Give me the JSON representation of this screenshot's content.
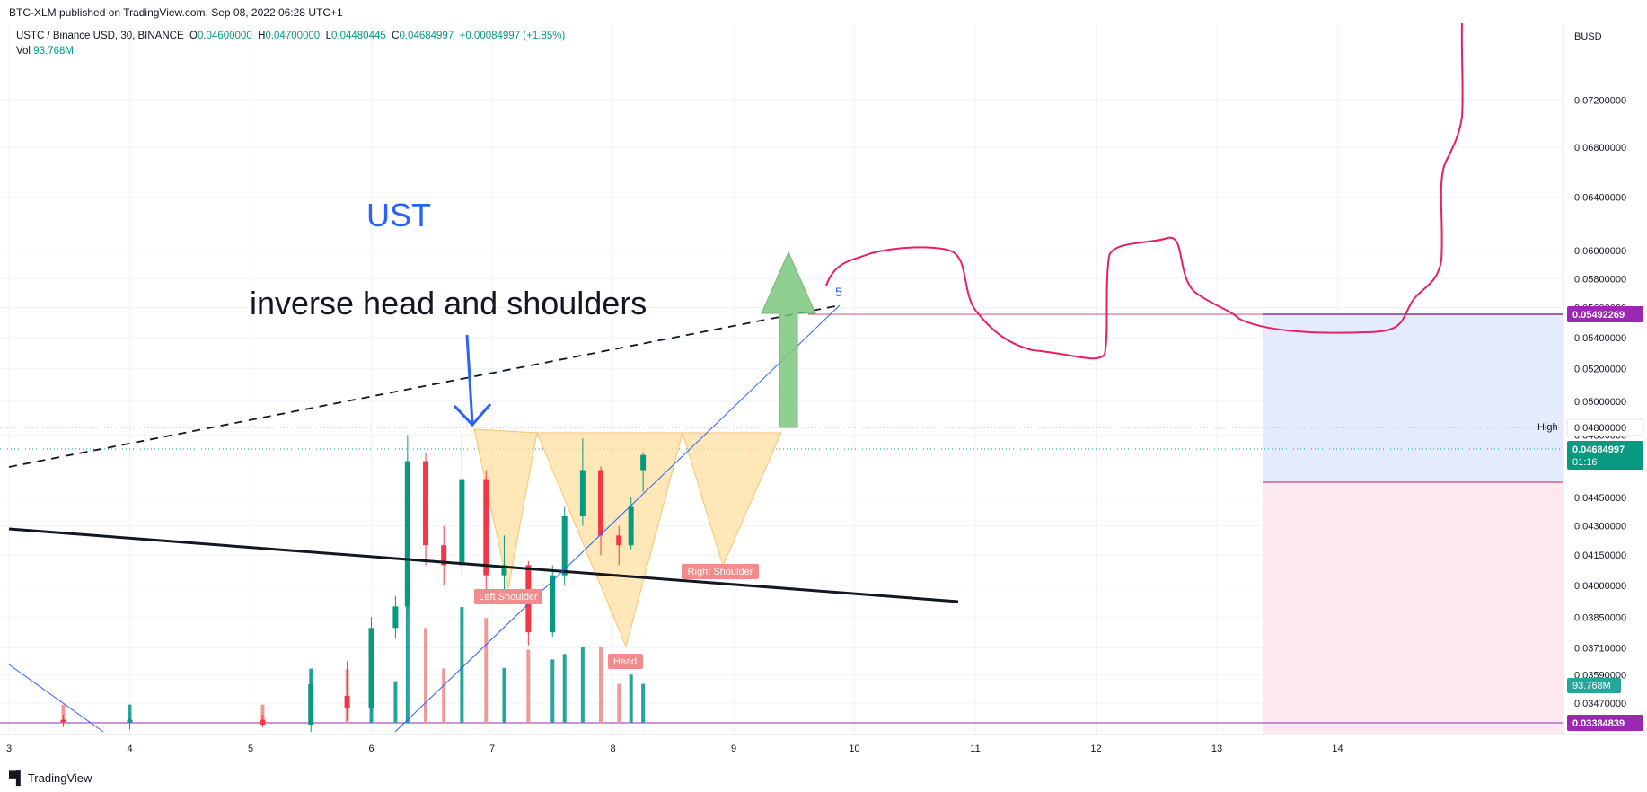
{
  "header": {
    "published": "BTC-XLM published on TradingView.com, Sep 08, 2022 06:28 UTC+1"
  },
  "legend": {
    "symbol": "USTC / Binance USD, 30, BINANCE",
    "o_label": "O",
    "o": "0.04600000",
    "h_label": "H",
    "h": "0.04700000",
    "l_label": "L",
    "l": "0.04480445",
    "c_label": "C",
    "c": "0.04684997",
    "change": "+0.00084997 (+1.85%)",
    "vol_label": "Vol",
    "vol": "93.768M"
  },
  "footer": {
    "brand": "TradingView"
  },
  "colors": {
    "up": "#089981",
    "down": "#f23645",
    "up_vol": "#26a69a",
    "down_vol": "#ef9a9a",
    "pattern_fill": "#ffe0a0",
    "projection": "#e91e63",
    "arrow": "#7cc77c",
    "target_zone": "#dbe6fb",
    "stop_zone": "#fce4ec",
    "label_blue": "#2962ff"
  },
  "chart_data": {
    "type": "candlestick",
    "quote_unit": "BUSD",
    "interval": "30",
    "y_axis_scale": "log",
    "x_ticks": [
      "3",
      "4",
      "5",
      "6",
      "7",
      "8",
      "9",
      "10",
      "11",
      "12",
      "13",
      "14"
    ],
    "y_ticks": [
      "0.07200000",
      "0.06800000",
      "0.06400000",
      "0.06000000",
      "0.05800000",
      "0.05600000",
      "0.05400000",
      "0.05200000",
      "0.05000000",
      "0.04800000",
      "0.04450000",
      "0.04300000",
      "0.04150000",
      "0.04000000",
      "0.03850000",
      "0.03710000",
      "0.03590000",
      "0.03470000"
    ],
    "y_ticks_values": [
      0.072,
      0.068,
      0.064,
      0.06,
      0.058,
      0.056,
      0.054,
      0.052,
      0.05,
      0.048,
      0.0445,
      0.043,
      0.0415,
      0.04,
      0.0385,
      0.0371,
      0.0359,
      0.0347
    ],
    "price_labels": {
      "target": "0.05492269",
      "last": "0.04684997",
      "countdown": "01:16",
      "volume": "93.768M",
      "base": "0.03384839",
      "high_label": "High",
      "high": "0.04800000"
    },
    "annotations": {
      "title": "UST",
      "pattern": "inverse head and shoulders",
      "left_shoulder": "Left Shoulder",
      "head": "Head",
      "right_shoulder": "Right Shoulder",
      "wave": "5"
    },
    "candles": [
      {
        "x": 3.45,
        "o": 0.034,
        "h": 0.0342,
        "l": 0.0337,
        "c": 0.0339
      },
      {
        "x": 4.0,
        "o": 0.0339,
        "h": 0.0341,
        "l": 0.0336,
        "c": 0.034
      },
      {
        "x": 5.1,
        "o": 0.034,
        "h": 0.0342,
        "l": 0.0337,
        "c": 0.0338
      },
      {
        "x": 5.5,
        "o": 0.0338,
        "h": 0.036,
        "l": 0.0335,
        "c": 0.0355
      },
      {
        "x": 5.8,
        "o": 0.035,
        "h": 0.0365,
        "l": 0.034,
        "c": 0.0345
      },
      {
        "x": 6.0,
        "o": 0.0345,
        "h": 0.0385,
        "l": 0.0343,
        "c": 0.038
      },
      {
        "x": 6.2,
        "o": 0.038,
        "h": 0.0395,
        "l": 0.0375,
        "c": 0.039
      },
      {
        "x": 6.3,
        "o": 0.039,
        "h": 0.048,
        "l": 0.0388,
        "c": 0.0465
      },
      {
        "x": 6.45,
        "o": 0.0465,
        "h": 0.047,
        "l": 0.041,
        "c": 0.042
      },
      {
        "x": 6.6,
        "o": 0.042,
        "h": 0.043,
        "l": 0.04,
        "c": 0.041
      },
      {
        "x": 6.75,
        "o": 0.041,
        "h": 0.048,
        "l": 0.0405,
        "c": 0.0455
      },
      {
        "x": 6.95,
        "o": 0.0455,
        "h": 0.046,
        "l": 0.0395,
        "c": 0.0405
      },
      {
        "x": 7.1,
        "o": 0.0405,
        "h": 0.0425,
        "l": 0.0395,
        "c": 0.041
      },
      {
        "x": 7.3,
        "o": 0.041,
        "h": 0.0412,
        "l": 0.0372,
        "c": 0.0378
      },
      {
        "x": 7.5,
        "o": 0.0378,
        "h": 0.041,
        "l": 0.0376,
        "c": 0.0405
      },
      {
        "x": 7.6,
        "o": 0.0405,
        "h": 0.044,
        "l": 0.04,
        "c": 0.0435
      },
      {
        "x": 7.75,
        "o": 0.0435,
        "h": 0.0478,
        "l": 0.043,
        "c": 0.046
      },
      {
        "x": 7.9,
        "o": 0.046,
        "h": 0.0462,
        "l": 0.0415,
        "c": 0.0425
      },
      {
        "x": 8.05,
        "o": 0.0425,
        "h": 0.043,
        "l": 0.041,
        "c": 0.042
      },
      {
        "x": 8.15,
        "o": 0.042,
        "h": 0.0445,
        "l": 0.0418,
        "c": 0.044
      },
      {
        "x": 8.25,
        "o": 0.046,
        "h": 0.047,
        "l": 0.04480445,
        "c": 0.04684997
      }
    ]
  }
}
